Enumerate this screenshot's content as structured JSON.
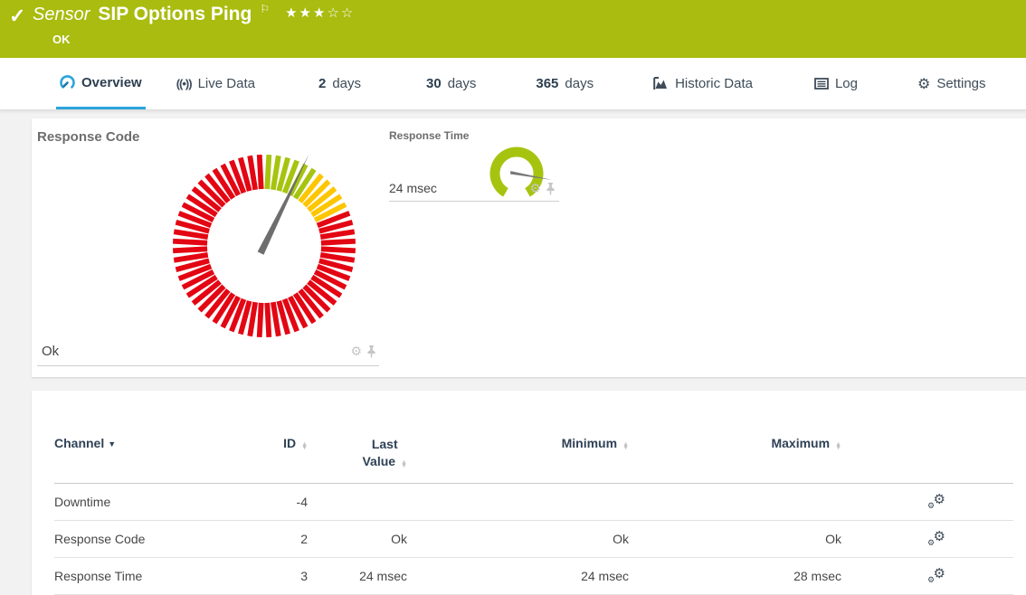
{
  "header": {
    "kind": "Sensor",
    "title": "SIP Options Ping",
    "status": "OK",
    "rating": "★★★☆☆",
    "bg_color": "#a9bc0f"
  },
  "icons": {
    "check": "✓",
    "flag": "⚐",
    "live": "((•))",
    "gear": "⚙",
    "sort_up": "▲",
    "sort_down": "▼",
    "caret_down": "▼"
  },
  "tabs": [
    {
      "label": "Overview",
      "active": true
    },
    {
      "label": "Live Data"
    },
    {
      "num": "2",
      "label": "days"
    },
    {
      "num": "30",
      "label": "days"
    },
    {
      "num": "365",
      "label": "days"
    },
    {
      "label": "Historic Data"
    },
    {
      "label": "Log"
    },
    {
      "label": "Settings"
    }
  ],
  "widgets": {
    "response_code": {
      "title": "Response Code",
      "value": "Ok"
    },
    "response_time": {
      "title": "Response Time",
      "value": "24 msec"
    }
  },
  "chart_data": [
    {
      "type": "gauge",
      "style": "tick-ring",
      "title": "Response Code",
      "value_label": "Ok",
      "tick_count": 60,
      "segments": [
        {
          "color": "#a6c40f",
          "from_deg": 0,
          "to_deg": 36
        },
        {
          "color": "#fdc600",
          "from_deg": 36,
          "to_deg": 66
        },
        {
          "color": "#e30613",
          "from_deg": 66,
          "to_deg": 360
        }
      ],
      "needle_deg": 26,
      "needle_color": "#6e6e6e"
    },
    {
      "type": "gauge",
      "style": "arc",
      "title": "Response Time",
      "value_label": "24 msec",
      "color": "#a6c40f",
      "arc_from_deg": -150,
      "arc_to_deg": 150,
      "needle_deg": 100,
      "needle_color": "#787878"
    }
  ],
  "table": {
    "headers": {
      "channel": "Channel",
      "id": "ID",
      "last_line1": "Last",
      "last_line2": "Value",
      "min": "Minimum",
      "max": "Maximum"
    },
    "rows": [
      {
        "channel": "Downtime",
        "id": "-4",
        "last": "",
        "min": "",
        "max": ""
      },
      {
        "channel": "Response Code",
        "id": "2",
        "last": "Ok",
        "min": "Ok",
        "max": "Ok"
      },
      {
        "channel": "Response Time",
        "id": "3",
        "last": "24 msec",
        "min": "24 msec",
        "max": "28 msec"
      }
    ]
  }
}
